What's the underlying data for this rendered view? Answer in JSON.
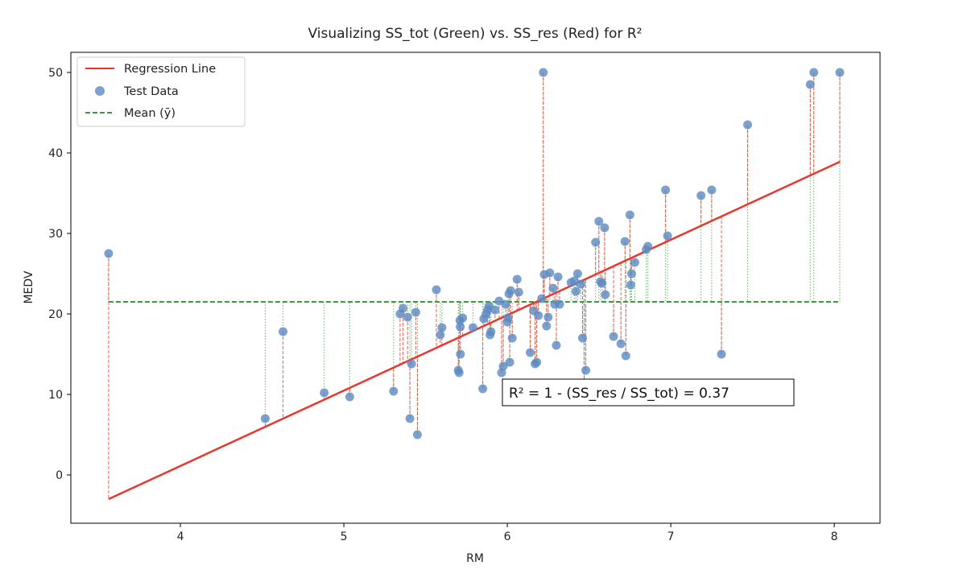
{
  "chart_data": {
    "type": "scatter",
    "title": "Visualizing SS_tot (Green) vs. SS_res (Red) for R²",
    "xlabel": "RM",
    "ylabel": "MEDV",
    "xlim": [
      3.33,
      8.28
    ],
    "ylim": [
      -6,
      52.5
    ],
    "xticks": [
      4,
      5,
      6,
      7,
      8
    ],
    "yticks": [
      0,
      10,
      20,
      30,
      40,
      50
    ],
    "grid": false,
    "legend_position": "top-left",
    "legend": [
      "Regression Line",
      "Test Data",
      "Mean (ȳ)"
    ],
    "annotation": "R² = 1 - (SS_res / SS_tot) = 0.37",
    "mean_y": 21.5,
    "regression_line": {
      "x": [
        3.561,
        8.034
      ],
      "y": [
        -3.0,
        38.9
      ],
      "color": "#e8372f"
    },
    "colors": {
      "points": "#5b8ac2",
      "regression": "#e8372f",
      "mean": "#3a9a3a",
      "residual": "#e8372f",
      "total": "#3a9a3a"
    },
    "points": {
      "x": [
        3.561,
        4.519,
        4.628,
        4.88,
        5.036,
        5.304,
        5.344,
        5.362,
        5.39,
        5.404,
        5.414,
        5.44,
        5.45,
        5.566,
        5.59,
        5.6,
        5.7,
        5.705,
        5.71,
        5.712,
        5.713,
        5.727,
        5.79,
        5.85,
        5.856,
        5.87,
        5.88,
        5.889,
        5.894,
        5.9,
        5.925,
        5.95,
        5.965,
        5.975,
        5.99,
        6.0,
        6.005,
        6.01,
        6.015,
        6.02,
        6.03,
        6.06,
        6.07,
        6.14,
        6.16,
        6.17,
        6.18,
        6.19,
        6.21,
        6.22,
        6.226,
        6.24,
        6.25,
        6.26,
        6.28,
        6.29,
        6.3,
        6.31,
        6.32,
        6.39,
        6.41,
        6.42,
        6.43,
        6.45,
        6.46,
        6.47,
        6.48,
        6.54,
        6.56,
        6.57,
        6.58,
        6.595,
        6.6,
        6.65,
        6.695,
        6.72,
        6.725,
        6.75,
        6.755,
        6.76,
        6.78,
        6.85,
        6.86,
        6.968,
        6.98,
        7.185,
        7.25,
        7.31,
        7.47,
        7.853,
        7.875,
        8.034
      ],
      "y": [
        27.5,
        7.0,
        17.8,
        10.2,
        9.7,
        10.4,
        20.0,
        20.7,
        19.6,
        7.0,
        13.8,
        20.2,
        5.0,
        23.0,
        17.4,
        18.3,
        13.0,
        12.7,
        19.2,
        18.4,
        15.0,
        19.5,
        18.3,
        10.7,
        19.4,
        20.0,
        20.5,
        21.0,
        17.4,
        17.8,
        20.5,
        21.6,
        12.7,
        13.5,
        21.2,
        19.0,
        19.5,
        22.5,
        14.0,
        22.9,
        17.0,
        24.3,
        22.7,
        15.2,
        20.4,
        13.8,
        14.0,
        19.8,
        21.9,
        50.0,
        24.9,
        18.5,
        19.6,
        25.1,
        23.2,
        21.2,
        16.1,
        24.6,
        21.2,
        23.9,
        24.1,
        22.8,
        25.0,
        23.7,
        17.0,
        9.5,
        13.0,
        28.9,
        31.5,
        24.0,
        23.8,
        30.7,
        22.4,
        17.2,
        16.3,
        29.0,
        14.8,
        32.3,
        23.6,
        25.0,
        26.4,
        28.0,
        28.4,
        35.4,
        29.7,
        34.7,
        35.4,
        15.0,
        43.5,
        48.5,
        50.0,
        50.0
      ]
    }
  }
}
